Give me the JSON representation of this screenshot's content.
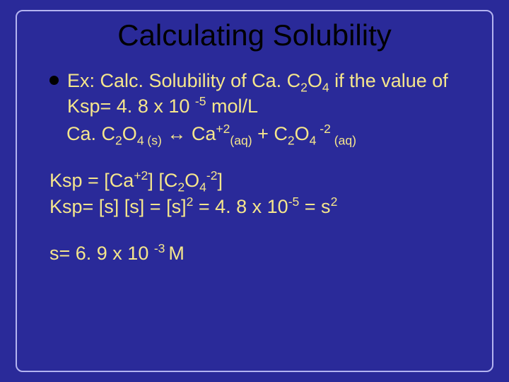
{
  "slide": {
    "background_color": "#2a2a99",
    "border_color": "#b4b4f0",
    "title_color": "#000000",
    "text_color": "#f5e68c",
    "title_fontsize": 42,
    "body_fontsize": 27,
    "title": "Calculating Solubility",
    "bullet": {
      "pre": "Ex: Calc. Solubility of Ca. C",
      "sub1": "2",
      "mid1": "O",
      "sub2": "4",
      "post1": " if the value of Ksp= 4. 8 x 10 ",
      "sup1": "-5",
      "post2": " mol/L"
    },
    "equation": {
      "p1": "Ca. C",
      "s1": "2",
      "p2": "O",
      "s2": "4 (s)",
      "arrow": "  ↔ Ca",
      "sup1": "+2",
      "sub_aq1": "(aq)",
      "plus": "  + C",
      "s3": "2",
      "p3": "O",
      "s4": "4",
      "sup2": " -2",
      "sub_aq2": " (aq)"
    },
    "ksp1": {
      "p1": "Ksp = [Ca",
      "sup1": "+2",
      "p2": "] [C",
      "s1": "2",
      "p3": "O",
      "s2": "4",
      "sup2": "-2",
      "p4": "]"
    },
    "ksp2": {
      "p1": "Ksp= [s] [s] =  [s]",
      "sup1": "2",
      "p2": "  =   4. 8 x 10",
      "sup2": "-5",
      "p3": "  = s",
      "sup3": "2"
    },
    "result": {
      "p1": "s= 6. 9 x 10 ",
      "sup1": "-3 ",
      "p2": " M"
    }
  }
}
